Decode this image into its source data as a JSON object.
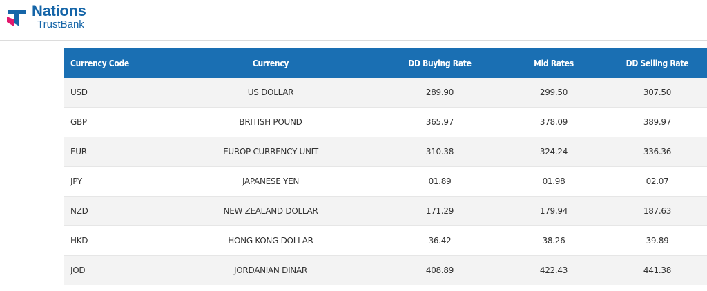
{
  "brand": {
    "name_line1": "Nations",
    "name_line2": "TrustBank",
    "logo_colors": {
      "primary": "#1565a8",
      "accent": "#e2196d"
    }
  },
  "table": {
    "header_bg": "#1a6fb3",
    "columns": [
      "Currency Code",
      "Currency",
      "DD Buying Rate",
      "Mid Rates",
      "DD Selling Rate"
    ],
    "rows": [
      {
        "code": "USD",
        "currency": "US DOLLAR",
        "buying": "289.90",
        "mid": "299.50",
        "selling": "307.50"
      },
      {
        "code": "GBP",
        "currency": "BRITISH POUND",
        "buying": "365.97",
        "mid": "378.09",
        "selling": "389.97"
      },
      {
        "code": "EUR",
        "currency": "EUROP CURRENCY UNIT",
        "buying": "310.38",
        "mid": "324.24",
        "selling": "336.36"
      },
      {
        "code": "JPY",
        "currency": "JAPANESE YEN",
        "buying": "01.89",
        "mid": "01.98",
        "selling": "02.07"
      },
      {
        "code": "NZD",
        "currency": "NEW ZEALAND DOLLAR",
        "buying": "171.29",
        "mid": "179.94",
        "selling": "187.63"
      },
      {
        "code": "HKD",
        "currency": "HONG KONG DOLLAR",
        "buying": "36.42",
        "mid": "38.26",
        "selling": "39.89"
      },
      {
        "code": "JOD",
        "currency": "JORDANIAN DINAR",
        "buying": "408.89",
        "mid": "422.43",
        "selling": "441.38"
      }
    ]
  }
}
